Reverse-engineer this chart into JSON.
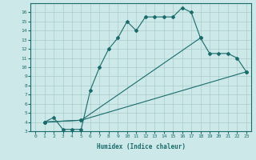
{
  "xlabel": "Humidex (Indice chaleur)",
  "bg_color": "#cde8e8",
  "grid_color": "#aacccc",
  "line_color": "#1a6b6b",
  "xlim": [
    -0.5,
    23.5
  ],
  "ylim": [
    3,
    17
  ],
  "xticks": [
    0,
    1,
    2,
    3,
    4,
    5,
    6,
    7,
    8,
    9,
    10,
    11,
    12,
    13,
    14,
    15,
    16,
    17,
    18,
    19,
    20,
    21,
    22,
    23
  ],
  "yticks": [
    3,
    4,
    5,
    6,
    7,
    8,
    9,
    10,
    11,
    12,
    13,
    14,
    15,
    16
  ],
  "curve1_x": [
    1,
    2,
    3,
    4,
    5,
    6,
    7,
    8,
    9,
    10,
    11,
    12,
    13,
    14,
    15,
    16,
    17,
    18
  ],
  "curve1_y": [
    4.0,
    4.5,
    3.2,
    3.2,
    3.2,
    7.5,
    10.0,
    12.0,
    13.2,
    15.0,
    14.0,
    15.5,
    15.5,
    15.5,
    15.5,
    16.5,
    16.0,
    13.2
  ],
  "curve2_x": [
    1,
    5,
    18,
    19,
    20,
    21,
    22,
    23
  ],
  "curve2_y": [
    4.0,
    4.2,
    13.2,
    11.5,
    11.5,
    11.5,
    11.0,
    9.5
  ],
  "curve3_x": [
    1,
    5,
    23
  ],
  "curve3_y": [
    4.0,
    4.2,
    9.5
  ]
}
